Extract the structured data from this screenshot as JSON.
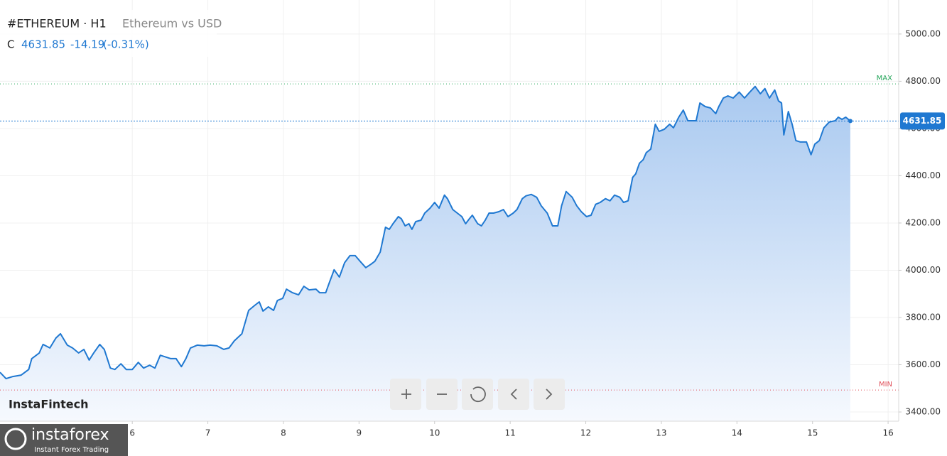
{
  "chart_data": {
    "type": "area-line",
    "symbol": "#ETHEREUM · H1",
    "description": "Ethereum vs USD",
    "close_prefix": "C",
    "change": -14.19,
    "change_percent": "(-0.31%)",
    "brand": "InstaFintech",
    "logo": {
      "name": "instaforex",
      "tagline": "Instant Forex Trading"
    },
    "max_line": {
      "label": "MAX",
      "value": 4789,
      "color": "#26a65b"
    },
    "min_line": {
      "label": "MIN",
      "value": 3493,
      "color": "#e0505a"
    },
    "xlim": [
      4.25,
      16.14
    ],
    "ylim": [
      3361,
      5144
    ],
    "xticks": [
      6,
      7,
      8,
      9,
      10,
      11,
      12,
      13,
      14,
      15,
      16
    ],
    "yticks": [
      {
        "value": 3400,
        "label": "3400.00"
      },
      {
        "value": 3600,
        "label": "3600.00"
      },
      {
        "value": 3800,
        "label": "3800.00"
      },
      {
        "value": 4000,
        "label": "4000.00"
      },
      {
        "value": 4200,
        "label": "4200.00"
      },
      {
        "value": 4400,
        "label": "4400.00"
      },
      {
        "value": 4600,
        "label": "4600.00"
      },
      {
        "value": 4800,
        "label": "4800.00"
      },
      {
        "value": 5000,
        "label": "5000.00"
      }
    ],
    "grid": true,
    "x": [
      4.25,
      4.33,
      4.42,
      4.53,
      4.63,
      4.67,
      4.77,
      4.82,
      4.91,
      4.99,
      5.05,
      5.14,
      5.21,
      5.29,
      5.36,
      5.43,
      5.49,
      5.57,
      5.63,
      5.71,
      5.77,
      5.85,
      5.92,
      6.0,
      6.08,
      6.15,
      6.23,
      6.3,
      6.37,
      6.43,
      6.51,
      6.58,
      6.65,
      6.71,
      6.77,
      6.86,
      6.95,
      7.03,
      7.12,
      7.21,
      7.28,
      7.35,
      7.45,
      7.54,
      7.62,
      7.68,
      7.73,
      7.8,
      7.87,
      7.92,
      7.99,
      8.04,
      8.12,
      8.2,
      8.27,
      8.34,
      8.43,
      8.48,
      8.56,
      8.6,
      8.67,
      8.74,
      8.81,
      8.88,
      8.95,
      9.03,
      9.09,
      9.16,
      9.21,
      9.28,
      9.35,
      9.4,
      9.45,
      9.52,
      9.56,
      9.61,
      9.66,
      9.7,
      9.75,
      9.82,
      9.87,
      9.94,
      10.0,
      10.06,
      10.13,
      10.17,
      10.24,
      10.3,
      10.36,
      10.41,
      10.46,
      10.5,
      10.57,
      10.62,
      10.67,
      10.72,
      10.78,
      10.85,
      10.91,
      10.97,
      11.04,
      11.09,
      11.16,
      11.21,
      11.28,
      11.35,
      11.41,
      11.49,
      11.56,
      11.63,
      11.68,
      11.74,
      11.82,
      11.88,
      11.94,
      12.01,
      12.07,
      12.13,
      12.19,
      12.26,
      12.32,
      12.38,
      12.45,
      12.5,
      12.56,
      12.62,
      12.66,
      12.71,
      12.76,
      12.8,
      12.86,
      12.92,
      12.97,
      13.04,
      13.11,
      13.16,
      13.23,
      13.29,
      13.35,
      13.42,
      13.46,
      13.51,
      13.58,
      13.65,
      13.72,
      13.76,
      13.82,
      13.88,
      13.95,
      14.03,
      14.1,
      14.17,
      14.24,
      14.31,
      14.37,
      14.43,
      14.5,
      14.55,
      14.59,
      14.62,
      14.68,
      14.73,
      14.78,
      14.84,
      14.92,
      14.98,
      15.03,
      15.09,
      15.15,
      15.22,
      15.3,
      15.34,
      15.39,
      15.44,
      15.5
    ],
    "series": [
      {
        "name": "Ethereum vs USD",
        "color": "#1f78d1",
        "values": [
          3568,
          3541,
          3550,
          3556,
          3580,
          3626,
          3650,
          3686,
          3671,
          3713,
          3731,
          3683,
          3671,
          3650,
          3665,
          3620,
          3650,
          3686,
          3665,
          3586,
          3580,
          3604,
          3580,
          3580,
          3610,
          3586,
          3598,
          3586,
          3640,
          3634,
          3626,
          3626,
          3592,
          3626,
          3671,
          3683,
          3680,
          3683,
          3680,
          3665,
          3671,
          3701,
          3731,
          3830,
          3851,
          3866,
          3827,
          3845,
          3830,
          3872,
          3881,
          3920,
          3905,
          3896,
          3932,
          3917,
          3920,
          3905,
          3905,
          3941,
          4002,
          3971,
          4032,
          4062,
          4062,
          4032,
          4011,
          4026,
          4038,
          4077,
          4182,
          4173,
          4197,
          4227,
          4218,
          4188,
          4197,
          4173,
          4206,
          4212,
          4242,
          4263,
          4287,
          4263,
          4318,
          4303,
          4257,
          4242,
          4227,
          4197,
          4218,
          4233,
          4197,
          4188,
          4212,
          4242,
          4242,
          4248,
          4257,
          4227,
          4242,
          4257,
          4303,
          4315,
          4321,
          4309,
          4273,
          4242,
          4188,
          4188,
          4273,
          4333,
          4309,
          4273,
          4248,
          4227,
          4233,
          4279,
          4287,
          4303,
          4294,
          4318,
          4309,
          4287,
          4294,
          4393,
          4408,
          4453,
          4468,
          4498,
          4513,
          4618,
          4588,
          4597,
          4618,
          4603,
          4648,
          4678,
          4633,
          4633,
          4633,
          4708,
          4693,
          4687,
          4663,
          4693,
          4729,
          4738,
          4729,
          4754,
          4729,
          4754,
          4778,
          4747,
          4769,
          4729,
          4763,
          4717,
          4708,
          4573,
          4672,
          4618,
          4549,
          4543,
          4543,
          4489,
          4534,
          4549,
          4603,
          4627,
          4633,
          4648,
          4639,
          4648,
          4631.85
        ]
      }
    ]
  }
}
